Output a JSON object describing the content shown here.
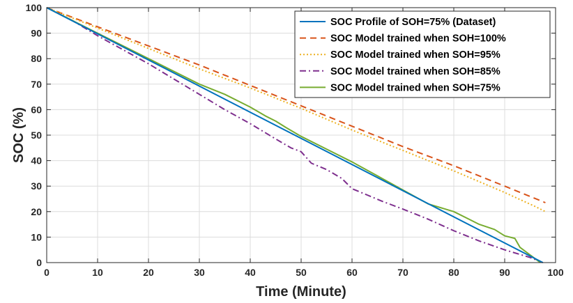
{
  "chart_data": {
    "type": "line",
    "title": "",
    "xlabel": "Time (Minute)",
    "ylabel": "SOC (%)",
    "xlim": [
      0,
      100
    ],
    "ylim": [
      0,
      100
    ],
    "xticks": [
      "0",
      "10",
      "20",
      "30",
      "40",
      "50",
      "60",
      "70",
      "80",
      "90",
      "100"
    ],
    "yticks": [
      "0",
      "10",
      "20",
      "30",
      "40",
      "50",
      "60",
      "70",
      "80",
      "90",
      "100"
    ],
    "grid": true,
    "legend_position": "top-right",
    "series": [
      {
        "name": "SOC Profile of SOH=75% (Dataset)",
        "color": "#0072BD",
        "dash": "solid",
        "x": [
          0,
          97.5
        ],
        "y": [
          100,
          0
        ]
      },
      {
        "name": "SOC Model trained when SOH=100%",
        "color": "#D95319",
        "dash": "dashed",
        "x": [
          0,
          10,
          20,
          30,
          40,
          50,
          60,
          70,
          80,
          90,
          98
        ],
        "y": [
          100,
          92.5,
          85,
          77.5,
          69.5,
          61.5,
          53.5,
          45.5,
          38,
          30,
          23.5
        ]
      },
      {
        "name": "SOC Model trained when SOH=95%",
        "color": "#EDB120",
        "dash": "dotted",
        "x": [
          0,
          10,
          20,
          30,
          40,
          50,
          60,
          70,
          80,
          90,
          96,
          98
        ],
        "y": [
          100,
          92,
          84,
          76,
          68.5,
          60.5,
          52,
          44,
          36,
          27.5,
          22,
          20
        ]
      },
      {
        "name": "SOC Model trained when SOH=85%",
        "color": "#7E2F8E",
        "dash": "dashdot",
        "x": [
          0,
          5,
          10,
          15,
          20,
          25,
          30,
          35,
          40,
          45,
          48,
          50,
          52,
          55,
          58,
          60,
          63,
          66,
          70,
          75,
          80,
          85,
          90,
          95,
          97.5
        ],
        "y": [
          100,
          95,
          89,
          83.5,
          78,
          72,
          66,
          60,
          54.5,
          48.5,
          45,
          43.5,
          39,
          36.5,
          33,
          29,
          26.5,
          24,
          21,
          17,
          12.5,
          8.5,
          5,
          2,
          0
        ]
      },
      {
        "name": "SOC Model trained when SOH=75%",
        "color": "#77AC30",
        "dash": "solid",
        "x": [
          0,
          5,
          10,
          15,
          20,
          25,
          30,
          35,
          40,
          43,
          45,
          47,
          50,
          55,
          60,
          65,
          70,
          75,
          80,
          83,
          85,
          88,
          90,
          92,
          93,
          95,
          97
        ],
        "y": [
          100,
          95,
          90,
          85,
          80,
          75,
          70,
          66,
          61,
          57.5,
          55.5,
          53,
          49.5,
          44.5,
          39.5,
          34,
          28.5,
          23,
          20,
          17,
          15,
          13,
          10.5,
          9.5,
          6,
          3,
          0
        ]
      }
    ]
  }
}
